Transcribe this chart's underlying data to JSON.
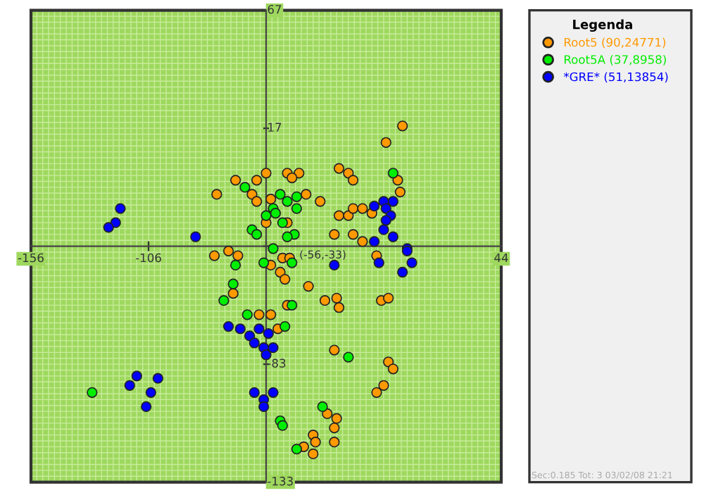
{
  "chart_data": {
    "type": "scatter",
    "xlim": [
      -156,
      44
    ],
    "ylim": [
      -133,
      67
    ],
    "xticks": [
      -156,
      -106,
      {
        "value": -56,
        "label": null
      },
      44
    ],
    "yticks": [
      67,
      17,
      {
        "value": -33,
        "label": null
      },
      -83,
      -133
    ],
    "grid": true,
    "marker": "circle",
    "legend": "right",
    "legend_title": "Legenda",
    "annotations": [
      "(-56,-33)",
      "Sec:0.185 Tot: 3 03/02/08 21:21"
    ],
    "series": [
      {
        "name": "Root5 (90,24771)",
        "color": "#ff9900",
        "x": [
          2,
          -5,
          -69,
          -60,
          -56,
          -47,
          -42,
          -45,
          -77,
          -62,
          -60,
          -54,
          -39,
          -33,
          -25,
          -21,
          -19,
          0,
          1,
          -25,
          -21,
          -19,
          -15,
          -11,
          -27,
          -19,
          -15,
          -47,
          -56,
          -78,
          -72,
          -68,
          -54,
          -49,
          -46,
          -50,
          -48,
          -70,
          -38,
          -31,
          -26,
          -25,
          -7,
          -4,
          -59,
          -54,
          -47,
          -51,
          -9,
          -27,
          -4,
          -2,
          -6,
          -9,
          -30,
          -26,
          -27,
          -36,
          -35,
          -40,
          -36,
          -27
        ],
        "values": [
          18,
          11,
          -5,
          -5,
          -2,
          -2,
          -2,
          -4,
          -11,
          -11,
          -14,
          -13,
          -11,
          -14,
          0,
          -2,
          -5,
          -5,
          -10,
          -20,
          -20,
          -17,
          -17,
          -19,
          -28,
          -28,
          -31,
          -23,
          -23,
          -37,
          -35,
          -37,
          -41,
          -38,
          -38,
          -44,
          -47,
          -53,
          -50,
          -56,
          -55,
          -59,
          -56,
          -55,
          -62,
          -62,
          -58,
          -68,
          -37,
          -77,
          -82,
          -85,
          -92,
          -95,
          -104,
          -106,
          -110,
          -113,
          -116,
          -118,
          -121,
          -116
        ]
      },
      {
        "name": "Root5A (37,8958)",
        "color": "#00ee00",
        "x": [
          -2,
          -65,
          -47,
          -50,
          -43,
          -43,
          -53,
          -52,
          -56,
          -49,
          -44,
          -47,
          -62,
          -60,
          -53,
          -69,
          -57,
          -45,
          -70,
          -74,
          -64,
          -45,
          -48,
          -21,
          -130,
          -32,
          -50,
          -49,
          -43
        ],
        "values": [
          -2,
          -8,
          -14,
          -11,
          -12,
          -17,
          -17,
          -19,
          -20,
          -23,
          -28,
          -29,
          -26,
          -28,
          -34,
          -41,
          -40,
          -40,
          -49,
          -56,
          -62,
          -58,
          -67,
          -80,
          -95,
          -101,
          -107,
          -109,
          -119
        ]
      },
      {
        "name": "*GRE* (51,13854)",
        "color": "#0000ff",
        "x": [
          -118,
          -120,
          -123,
          -86,
          -10,
          -6,
          -2,
          -5,
          -3,
          -5,
          -6,
          -2,
          -10,
          4,
          4,
          -8,
          6,
          2,
          -27,
          -72,
          -67,
          -59,
          -55,
          -63,
          -61,
          -57,
          -53,
          -56,
          -111,
          -114,
          -102,
          -105,
          -107,
          -61,
          -53,
          -57,
          -57
        ],
        "values": [
          -17,
          -23,
          -25,
          -29,
          -16,
          -14,
          -14,
          -17,
          -20,
          -22,
          -26,
          -29,
          -31,
          -34,
          -35,
          -40,
          -40,
          -44,
          -41,
          -67,
          -68,
          -68,
          -70,
          -71,
          -74,
          -76,
          -76,
          -79,
          -88,
          -92,
          -89,
          -95,
          -101,
          -95,
          -95,
          -98,
          -101
        ]
      }
    ]
  }
}
